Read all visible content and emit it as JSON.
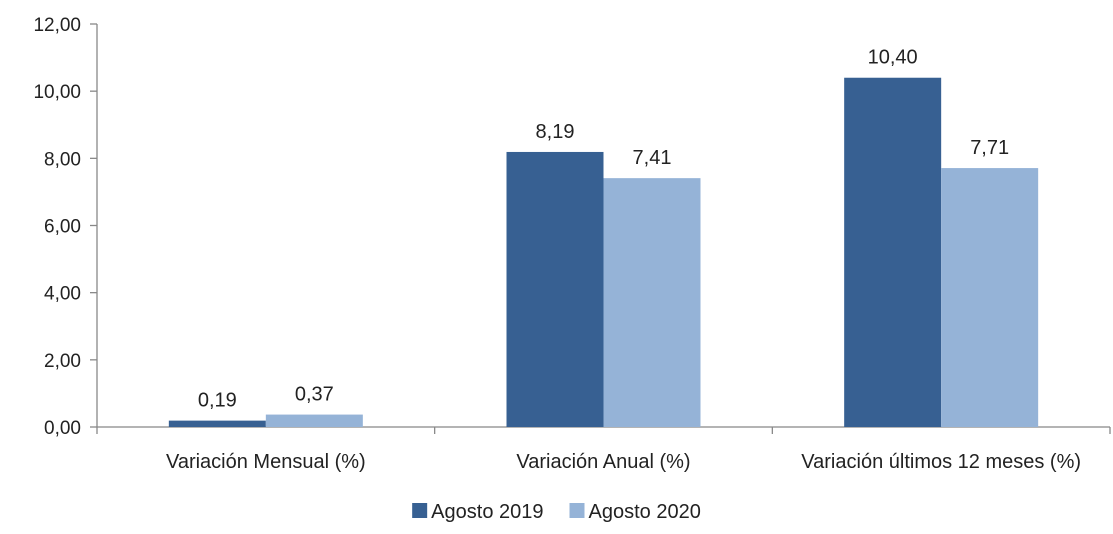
{
  "chart_data": {
    "type": "bar",
    "title": "",
    "xlabel": "",
    "ylabel": "",
    "categories": [
      "Variación Mensual (%)",
      "Variación  Anual (%)",
      "Variación últimos 12 meses (%)"
    ],
    "series": [
      {
        "name": "Agosto 2019",
        "values": [
          0.19,
          8.19,
          10.4
        ],
        "labels": [
          "0,19",
          "8,19",
          "10,40"
        ],
        "color": "#376092"
      },
      {
        "name": "Agosto 2020",
        "values": [
          0.37,
          7.41,
          7.71
        ],
        "labels": [
          "0,37",
          "7,41",
          "7,71"
        ],
        "color": "#95b3d7"
      }
    ],
    "ylim": [
      0,
      12
    ],
    "yticks": [
      0,
      2,
      4,
      6,
      8,
      10,
      12
    ],
    "ytick_labels": [
      "0,00",
      "2,00",
      "4,00",
      "6,00",
      "8,00",
      "10,00",
      "12,00"
    ],
    "grid": false,
    "legend_position": "bottom"
  }
}
